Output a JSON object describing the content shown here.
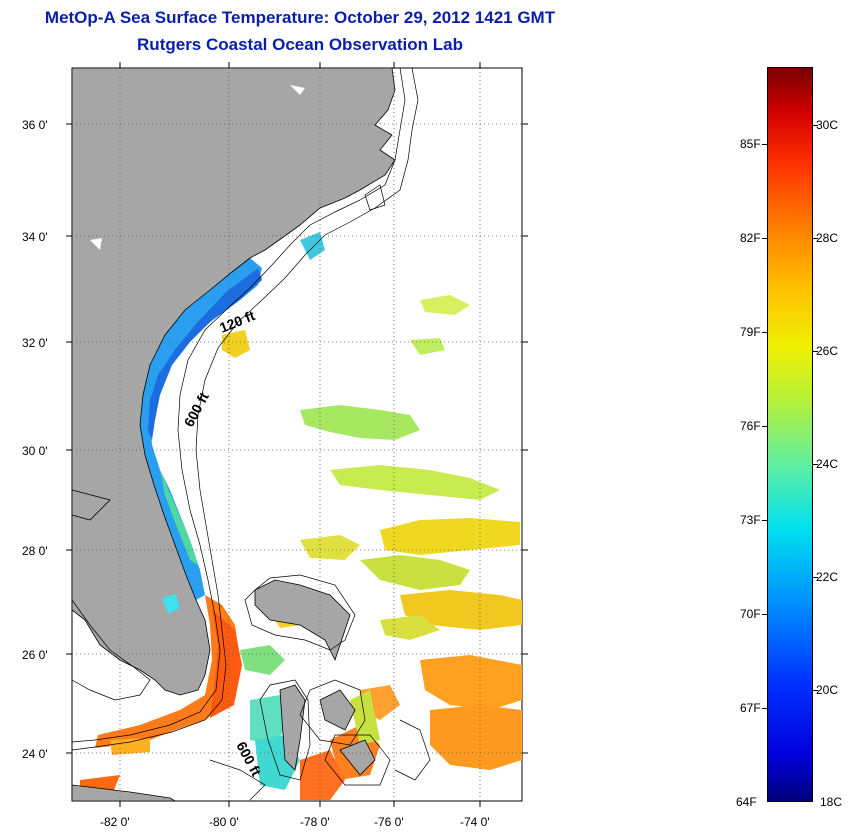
{
  "title_line1": "MetOp-A Sea Surface Temperature:  October 29, 2012 1421 GMT",
  "title_line2": "Rutgers Coastal Ocean Observation Lab",
  "lat_labels": [
    "36 0'",
    "34 0'",
    "32 0'",
    "30 0'",
    "28 0'",
    "26 0'",
    "24 0'"
  ],
  "lon_labels": [
    "-82 0'",
    "-80 0'",
    "-78 0'",
    "-76 0'",
    "-74 0'"
  ],
  "contour_labels": {
    "shallow": "120 ft",
    "deep_north": "600 ft",
    "deep_south": "600 ft"
  },
  "colorbar": {
    "f_labels": [
      "85F",
      "82F",
      "79F",
      "76F",
      "73F",
      "70F",
      "67F",
      "64F"
    ],
    "c_labels": [
      "30C",
      "28C",
      "26C",
      "24C",
      "22C",
      "20C",
      "18C"
    ],
    "range_c": [
      18,
      31
    ]
  },
  "colors": {
    "title": "#0a1fa8",
    "land": "#a6a6a6"
  }
}
